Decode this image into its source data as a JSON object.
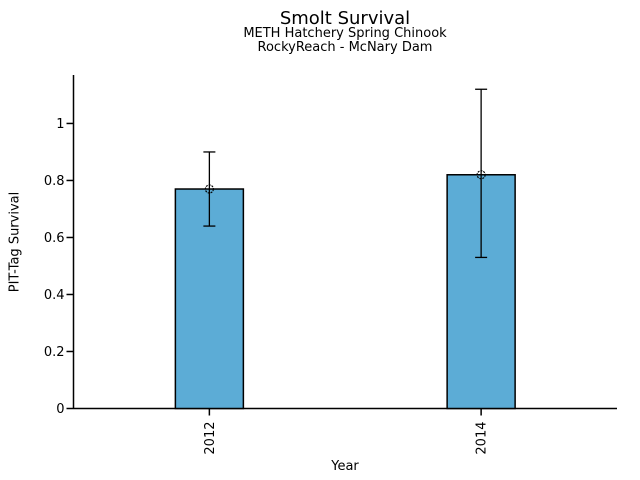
{
  "chart_data": {
    "type": "bar",
    "title": "Smolt Survival",
    "subtitle": [
      "METH Hatchery Spring Chinook",
      "RockyReach - McNary Dam"
    ],
    "xlabel": "Year",
    "ylabel": "PIT-Tag Survival",
    "categories": [
      "2012",
      "2014"
    ],
    "values": [
      0.77,
      0.82
    ],
    "error_low": [
      0.64,
      0.53
    ],
    "error_high": [
      0.9,
      1.12
    ],
    "ytick_values": [
      0,
      0.2,
      0.4,
      0.6,
      0.8,
      1
    ],
    "ytick_labels": [
      "0",
      "0.2",
      "0.4",
      "0.6",
      "0.8",
      "1"
    ],
    "ylim": [
      0,
      1.17
    ],
    "x_tick_label_rotation": 90,
    "grid": false,
    "legend": false,
    "marker": "open-circle",
    "colors": {
      "bar_fill": "#5cacd6",
      "bar_edge": "#000000",
      "error_bar": "#000000",
      "axis": "#000000",
      "text": "#000000",
      "background": "#ffffff"
    }
  }
}
